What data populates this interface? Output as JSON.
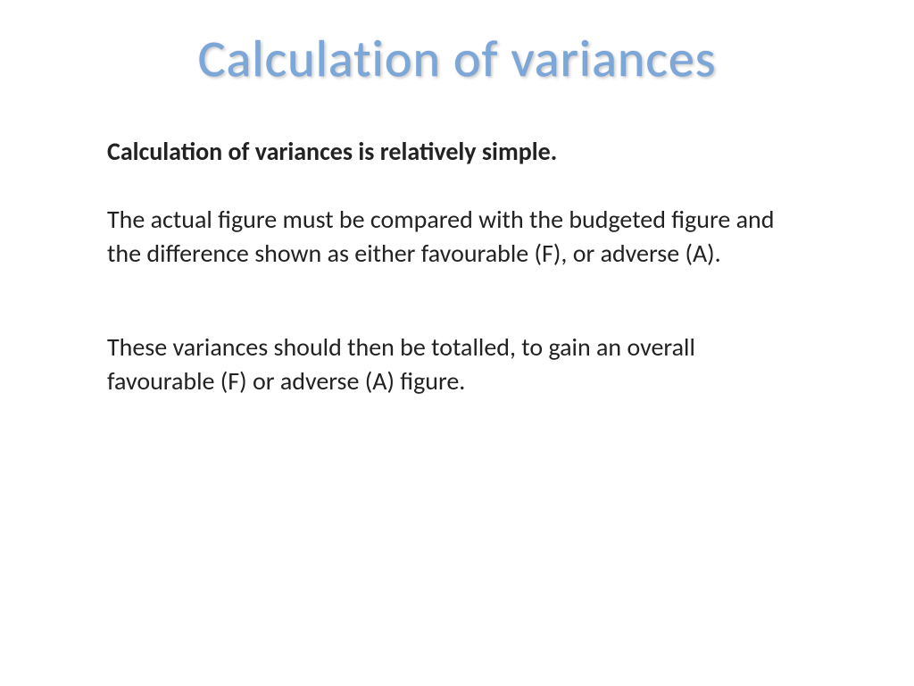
{
  "slide": {
    "title": "Calculation of variances",
    "para1": "Calculation of variances is relatively simple.",
    "para2": "The actual figure must be compared with the budgeted figure and the difference shown as either favourable (F), or adverse (A).",
    "para3": "These variances should then be totalled, to gain an overall favourable (F) or adverse (A) figure.",
    "title_color": "#7ba7d9",
    "body_color": "#222222",
    "background_color": "#ffffff",
    "title_fontsize": 58,
    "body_fontsize": 28
  }
}
